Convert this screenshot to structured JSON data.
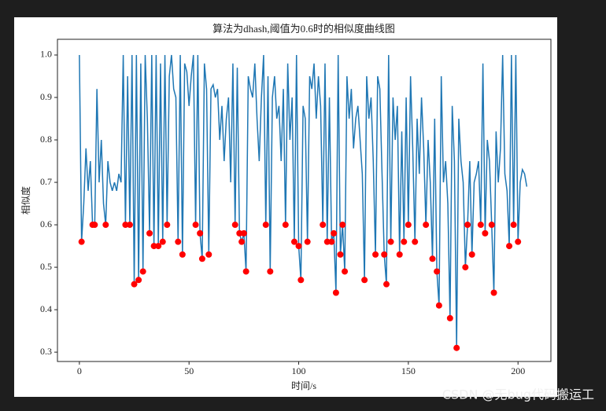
{
  "chart_data": {
    "type": "line",
    "title": "算法为dhash,阈值为0.6时的相似度曲线图",
    "xlabel": "时间/s",
    "ylabel": "相似度",
    "watermark": "CSDN @无bug代码搬运工",
    "xlim": [
      -10,
      215
    ],
    "ylim": [
      0.278,
      1.037
    ],
    "xticks": [
      0,
      50,
      100,
      150,
      200
    ],
    "yticks": [
      0.3,
      0.4,
      0.5,
      0.6,
      0.7,
      0.8,
      0.9,
      {
        "value": 1,
        "label": "1.0"
      }
    ],
    "series": [
      {
        "type": "line",
        "color": "#1f77b4",
        "x": [
          0,
          1,
          2,
          3,
          4,
          5,
          6,
          7,
          8,
          9,
          10,
          11,
          12,
          13,
          14,
          15,
          16,
          17,
          18,
          19,
          20,
          21,
          22,
          23,
          24,
          25,
          26,
          27,
          28,
          29,
          30,
          31,
          32,
          33,
          34,
          35,
          36,
          37,
          38,
          39,
          40,
          41,
          42,
          43,
          44,
          45,
          46,
          47,
          48,
          49,
          50,
          51,
          52,
          53,
          54,
          55,
          56,
          57,
          58,
          59,
          60,
          61,
          62,
          63,
          64,
          65,
          66,
          67,
          68,
          69,
          70,
          71,
          72,
          73,
          74,
          75,
          76,
          77,
          78,
          79,
          80,
          81,
          82,
          83,
          84,
          85,
          86,
          87,
          88,
          89,
          90,
          91,
          92,
          93,
          94,
          95,
          96,
          97,
          98,
          99,
          100,
          101,
          102,
          103,
          104,
          105,
          106,
          107,
          108,
          109,
          110,
          111,
          112,
          113,
          114,
          115,
          116,
          117,
          118,
          119,
          120,
          121,
          122,
          123,
          124,
          125,
          126,
          127,
          128,
          129,
          130,
          131,
          132,
          133,
          134,
          135,
          136,
          137,
          138,
          139,
          140,
          141,
          142,
          143,
          144,
          145,
          146,
          147,
          148,
          149,
          150,
          151,
          152,
          153,
          154,
          155,
          156,
          157,
          158,
          159,
          160,
          161,
          162,
          163,
          164,
          165,
          166,
          167,
          168,
          169,
          170,
          171,
          172,
          173,
          174,
          175,
          176,
          177,
          178,
          179,
          180,
          181,
          182,
          183,
          184,
          185,
          186,
          187,
          188,
          189,
          190,
          191,
          192,
          193,
          194,
          195,
          196,
          197,
          198,
          199,
          200,
          201,
          202,
          203,
          204
        ],
        "values": [
          1.0,
          0.56,
          0.65,
          0.78,
          0.68,
          0.75,
          0.6,
          0.6,
          0.92,
          0.7,
          0.8,
          0.65,
          0.6,
          0.75,
          0.7,
          0.68,
          0.7,
          0.68,
          0.72,
          0.7,
          1.0,
          0.6,
          0.95,
          0.6,
          1.0,
          0.46,
          1.0,
          0.47,
          0.98,
          0.49,
          1.0,
          0.85,
          0.58,
          1.0,
          0.55,
          1.0,
          0.55,
          0.98,
          0.56,
          1.0,
          0.6,
          0.95,
          1.0,
          0.92,
          0.9,
          0.56,
          1.0,
          0.53,
          0.98,
          0.96,
          0.88,
          0.95,
          1.0,
          0.6,
          1.0,
          0.58,
          0.52,
          0.98,
          0.92,
          0.53,
          0.92,
          0.93,
          0.9,
          0.92,
          0.8,
          0.88,
          0.75,
          0.85,
          0.9,
          0.7,
          0.98,
          0.6,
          0.97,
          0.58,
          0.56,
          0.58,
          0.49,
          0.95,
          0.92,
          0.9,
          0.98,
          0.85,
          0.75,
          0.9,
          1.0,
          0.6,
          0.95,
          0.49,
          0.9,
          0.95,
          0.85,
          0.88,
          0.75,
          0.92,
          0.6,
          0.98,
          0.8,
          0.9,
          0.56,
          1.0,
          0.55,
          0.47,
          0.88,
          0.85,
          0.56,
          0.95,
          0.92,
          0.98,
          0.85,
          0.95,
          0.88,
          0.6,
          0.98,
          0.56,
          0.9,
          0.56,
          0.58,
          0.44,
          1.0,
          0.53,
          0.6,
          0.49,
          0.95,
          0.85,
          0.92,
          0.78,
          0.85,
          0.88,
          0.8,
          0.72,
          0.47,
          0.95,
          0.85,
          0.9,
          0.75,
          0.53,
          0.95,
          0.92,
          0.72,
          0.53,
          0.46,
          1.0,
          0.56,
          0.9,
          0.8,
          0.88,
          0.53,
          0.82,
          0.56,
          0.9,
          0.6,
          0.95,
          0.78,
          0.56,
          0.85,
          0.72,
          0.9,
          0.78,
          0.6,
          0.8,
          0.7,
          0.52,
          0.85,
          0.49,
          0.41,
          0.95,
          0.7,
          0.75,
          0.65,
          0.38,
          0.88,
          0.75,
          0.31,
          0.85,
          0.75,
          0.7,
          0.5,
          0.6,
          0.75,
          0.53,
          0.7,
          0.72,
          0.75,
          0.6,
          0.98,
          0.58,
          0.8,
          0.75,
          0.6,
          0.44,
          0.82,
          0.7,
          0.78,
          1.0,
          0.72,
          0.68,
          0.55,
          1.0,
          0.6,
          1.0,
          0.56,
          0.7,
          0.73,
          0.72,
          0.69
        ]
      },
      {
        "type": "scatter",
        "color": "#ff0000",
        "x": [
          1,
          6,
          7,
          12,
          21,
          23,
          25,
          27,
          29,
          32,
          34,
          36,
          38,
          40,
          45,
          47,
          53,
          55,
          56,
          59,
          71,
          73,
          74,
          75,
          76,
          85,
          87,
          94,
          98,
          100,
          101,
          104,
          111,
          113,
          115,
          116,
          117,
          119,
          120,
          121,
          130,
          135,
          139,
          140,
          142,
          146,
          148,
          150,
          153,
          158,
          161,
          163,
          164,
          169,
          172,
          176,
          177,
          179,
          183,
          185,
          188,
          189,
          196,
          198,
          200
        ],
        "values": [
          0.56,
          0.6,
          0.6,
          0.6,
          0.6,
          0.6,
          0.46,
          0.47,
          0.49,
          0.58,
          0.55,
          0.55,
          0.56,
          0.6,
          0.56,
          0.53,
          0.6,
          0.58,
          0.52,
          0.53,
          0.6,
          0.58,
          0.56,
          0.58,
          0.49,
          0.6,
          0.49,
          0.6,
          0.56,
          0.55,
          0.47,
          0.56,
          0.6,
          0.56,
          0.56,
          0.58,
          0.44,
          0.53,
          0.6,
          0.49,
          0.47,
          0.53,
          0.53,
          0.46,
          0.56,
          0.53,
          0.56,
          0.6,
          0.56,
          0.6,
          0.52,
          0.49,
          0.41,
          0.38,
          0.31,
          0.5,
          0.6,
          0.53,
          0.6,
          0.58,
          0.6,
          0.44,
          0.55,
          0.6,
          0.56
        ]
      }
    ]
  }
}
